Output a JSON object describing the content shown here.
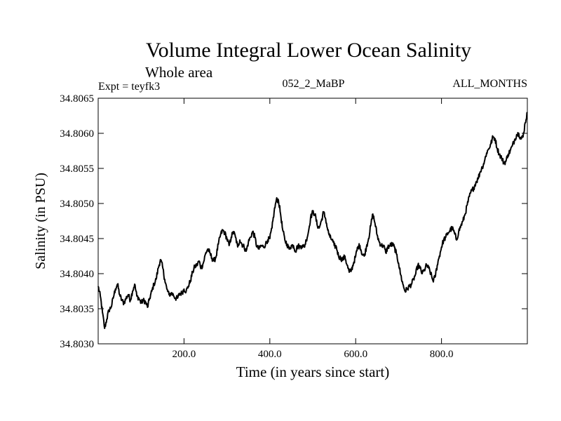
{
  "chart_data": {
    "type": "line",
    "title": "Volume Integral Lower Ocean Salinity",
    "subtitle": "Whole area",
    "left_label": "Expt = teyfk3",
    "center_label": "052_2_MaBP",
    "right_label": "ALL_MONTHS",
    "xlabel": "Time (in years since start)",
    "ylabel": "Salinity (in PSU)",
    "xlim": [
      0,
      1000
    ],
    "ylim": [
      34.803,
      34.8065
    ],
    "xticks": [
      200,
      400,
      600,
      800
    ],
    "xtick_labels": [
      "200.0",
      "400.0",
      "600.0",
      "800.0"
    ],
    "yticks": [
      34.803,
      34.8035,
      34.804,
      34.8045,
      34.805,
      34.8055,
      34.806,
      34.8065
    ],
    "ytick_labels": [
      "34.8030",
      "34.8035",
      "34.8040",
      "34.8045",
      "34.8050",
      "34.8055",
      "34.8060",
      "34.8065"
    ],
    "grid": false,
    "series": [
      {
        "name": "salinity",
        "color": "#000000",
        "x": [
          0,
          5,
          10,
          15,
          20,
          25,
          30,
          35,
          40,
          45,
          50,
          55,
          60,
          65,
          70,
          75,
          80,
          85,
          90,
          95,
          100,
          105,
          110,
          115,
          120,
          125,
          130,
          135,
          140,
          145,
          150,
          155,
          160,
          165,
          170,
          175,
          180,
          185,
          190,
          195,
          200,
          205,
          210,
          215,
          220,
          225,
          230,
          235,
          240,
          245,
          250,
          255,
          260,
          265,
          270,
          275,
          280,
          285,
          290,
          295,
          300,
          305,
          310,
          315,
          320,
          325,
          330,
          335,
          340,
          345,
          350,
          355,
          360,
          365,
          370,
          375,
          380,
          385,
          390,
          395,
          400,
          405,
          410,
          415,
          420,
          425,
          430,
          435,
          440,
          445,
          450,
          455,
          460,
          465,
          470,
          475,
          480,
          485,
          490,
          495,
          500,
          505,
          510,
          515,
          520,
          525,
          530,
          535,
          540,
          545,
          550,
          555,
          560,
          565,
          570,
          575,
          580,
          585,
          590,
          595,
          600,
          605,
          610,
          615,
          620,
          625,
          630,
          635,
          640,
          645,
          650,
          655,
          660,
          665,
          670,
          675,
          680,
          685,
          690,
          695,
          700,
          705,
          710,
          715,
          720,
          725,
          730,
          735,
          740,
          745,
          750,
          755,
          760,
          765,
          770,
          775,
          780,
          785,
          790,
          795,
          800,
          805,
          810,
          815,
          820,
          825,
          830,
          835,
          840,
          845,
          850,
          855,
          860,
          865,
          870,
          875,
          880,
          885,
          890,
          895,
          900,
          905,
          910,
          915,
          920,
          925,
          930,
          935,
          940,
          945,
          950,
          955,
          960,
          965,
          970,
          975,
          980,
          985,
          990,
          995,
          1000
        ],
        "values": [
          34.80382,
          34.80368,
          34.80345,
          34.80322,
          34.80335,
          34.80348,
          34.80352,
          34.80365,
          34.80378,
          34.80385,
          34.8037,
          34.80362,
          34.80358,
          34.80365,
          34.8037,
          34.80362,
          34.80375,
          34.80385,
          34.80368,
          34.80365,
          34.80358,
          34.80362,
          34.8036,
          34.80352,
          34.80365,
          34.80375,
          34.80385,
          34.80392,
          34.80408,
          34.8042,
          34.8041,
          34.80392,
          34.80378,
          34.8037,
          34.80372,
          34.8037,
          34.80365,
          34.80365,
          34.80372,
          34.80372,
          34.80378,
          34.80375,
          34.80382,
          34.8039,
          34.80402,
          34.8041,
          34.80412,
          34.80418,
          34.80408,
          34.80415,
          34.80428,
          34.80435,
          34.8043,
          34.80422,
          34.80418,
          34.80425,
          34.80442,
          34.80455,
          34.80462,
          34.80458,
          34.8045,
          34.8044,
          34.80452,
          34.8046,
          34.80452,
          34.80438,
          34.80448,
          34.80442,
          34.80438,
          34.80432,
          34.80445,
          34.80452,
          34.8046,
          34.80452,
          34.80438,
          34.80435,
          34.8044,
          34.80438,
          34.80442,
          34.80448,
          34.8045,
          34.80465,
          34.80488,
          34.80505,
          34.80505,
          34.80485,
          34.80462,
          34.80448,
          34.80442,
          34.80435,
          34.8044,
          34.8044,
          34.80432,
          34.8044,
          34.80438,
          34.8044,
          34.80438,
          34.80448,
          34.8046,
          34.8048,
          34.80488,
          34.80485,
          34.8047,
          34.80465,
          34.80475,
          34.80488,
          34.80478,
          34.80462,
          34.80452,
          34.80448,
          34.8044,
          34.80438,
          34.80425,
          34.80422,
          34.8042,
          34.80425,
          34.80412,
          34.80402,
          34.80405,
          34.80415,
          34.80425,
          34.80438,
          34.8044,
          34.80428,
          34.80425,
          34.80438,
          34.8045,
          34.80468,
          34.80485,
          34.80472,
          34.80455,
          34.80445,
          34.8044,
          34.8044,
          34.8043,
          34.80438,
          34.8044,
          34.80442,
          34.80438,
          34.80428,
          34.80415,
          34.80398,
          34.80385,
          34.80375,
          34.80378,
          34.80382,
          34.80385,
          34.80392,
          34.804,
          34.80412,
          34.80408,
          34.804,
          34.80405,
          34.80412,
          34.80408,
          34.804,
          34.8039,
          34.80395,
          34.80412,
          34.80425,
          34.80438,
          34.80448,
          34.80452,
          34.80458,
          34.80462,
          34.80465,
          34.80458,
          34.80448,
          34.8046,
          34.80468,
          34.80475,
          34.80485,
          34.80498,
          34.8051,
          34.80518,
          34.80522,
          34.8053,
          34.80535,
          34.80545,
          34.80552,
          34.8056,
          34.80572,
          34.80578,
          34.80585,
          34.80595,
          34.80592,
          34.80578,
          34.8057,
          34.80565,
          34.80558,
          34.8056,
          34.8057,
          34.80575,
          34.80582,
          34.8059,
          34.80598,
          34.806,
          34.80592,
          34.80595,
          34.80615,
          34.8063
        ]
      }
    ]
  }
}
